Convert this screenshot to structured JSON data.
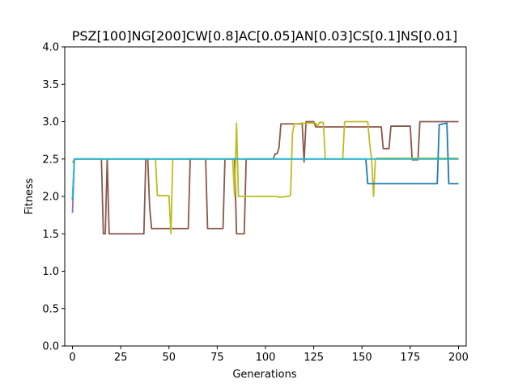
{
  "chart_data": {
    "type": "line",
    "title": "PSZ[100]NG[200]CW[0.8]AC[0.05]AN[0.03]CS[0.1]NS[0.01]",
    "xlabel": "Generations",
    "ylabel": "Fitness",
    "xlim": [
      -4,
      204
    ],
    "ylim": [
      0.0,
      4.0
    ],
    "xticks": [
      0,
      25,
      50,
      75,
      100,
      125,
      150,
      175,
      200
    ],
    "yticks": [
      0.0,
      0.5,
      1.0,
      1.5,
      2.0,
      2.5,
      3.0,
      3.5,
      4.0
    ],
    "ytick_labels": [
      "0.0",
      "0.5",
      "1.0",
      "1.5",
      "2.0",
      "2.5",
      "3.0",
      "3.5",
      "4.0"
    ],
    "grid": false,
    "legend": "none",
    "series": [
      {
        "color": "#8c564b",
        "points": [
          [
            0,
            2.45
          ],
          [
            1,
            2.5
          ],
          [
            15,
            2.5
          ],
          [
            16,
            1.5
          ],
          [
            17,
            1.5
          ],
          [
            18,
            2.5
          ],
          [
            19,
            1.5
          ],
          [
            37,
            1.5
          ],
          [
            38,
            2.5
          ],
          [
            39,
            2.5
          ],
          [
            40,
            1.85
          ],
          [
            41,
            1.57
          ],
          [
            60,
            1.57
          ],
          [
            61,
            2.5
          ],
          [
            69,
            2.5
          ],
          [
            70,
            1.57
          ],
          [
            78,
            1.57
          ],
          [
            79,
            2.5
          ],
          [
            84,
            2.5
          ],
          [
            85,
            1.5
          ],
          [
            89,
            1.5
          ],
          [
            90,
            2.5
          ],
          [
            104,
            2.5
          ],
          [
            105,
            2.57
          ],
          [
            106,
            2.57
          ],
          [
            107,
            2.65
          ],
          [
            108,
            2.97
          ],
          [
            118,
            2.97
          ],
          [
            119,
            2.98
          ],
          [
            120,
            2.46
          ],
          [
            121,
            3.0
          ],
          [
            125,
            3.0
          ],
          [
            126,
            2.93
          ],
          [
            160,
            2.93
          ],
          [
            161,
            2.64
          ],
          [
            164,
            2.64
          ],
          [
            165,
            2.94
          ],
          [
            175,
            2.94
          ],
          [
            176,
            2.49
          ],
          [
            179,
            2.49
          ],
          [
            180,
            3.0
          ],
          [
            200,
            3.0
          ]
        ]
      },
      {
        "color": "#bcbd22",
        "points": [
          [
            0,
            2.45
          ],
          [
            1,
            2.5
          ],
          [
            43,
            2.5
          ],
          [
            44,
            2.01
          ],
          [
            50,
            2.01
          ],
          [
            51,
            1.5
          ],
          [
            52,
            2.5
          ],
          [
            83,
            2.5
          ],
          [
            84,
            2.0
          ],
          [
            85,
            2.98
          ],
          [
            86,
            2.0
          ],
          [
            106,
            2.0
          ],
          [
            107,
            1.99
          ],
          [
            112,
            2.0
          ],
          [
            113,
            2.02
          ],
          [
            114,
            2.85
          ],
          [
            115,
            2.97
          ],
          [
            120,
            2.98
          ],
          [
            126,
            2.98
          ],
          [
            127,
            2.94
          ],
          [
            128,
            2.99
          ],
          [
            130,
            2.99
          ],
          [
            131,
            2.5
          ],
          [
            140,
            2.5
          ],
          [
            141,
            3.0
          ],
          [
            153,
            3.0
          ],
          [
            154,
            2.7
          ],
          [
            155,
            2.5
          ],
          [
            156,
            2.0
          ],
          [
            157,
            2.5
          ],
          [
            158,
            2.51
          ],
          [
            200,
            2.51
          ]
        ]
      },
      {
        "color": "#1f77b4",
        "points": [
          [
            0,
            1.95
          ],
          [
            1,
            2.5
          ],
          [
            152,
            2.5
          ],
          [
            153,
            2.17
          ],
          [
            189,
            2.17
          ],
          [
            190,
            2.96
          ],
          [
            194,
            2.98
          ],
          [
            195,
            2.17
          ],
          [
            200,
            2.17
          ]
        ]
      },
      {
        "color": "#9467bd",
        "points": [
          [
            0,
            1.78
          ],
          [
            1,
            2.5
          ],
          [
            200,
            2.5
          ]
        ]
      },
      {
        "color": "#17becf",
        "points": [
          [
            0,
            1.97
          ],
          [
            1,
            2.5
          ],
          [
            200,
            2.5
          ]
        ]
      }
    ]
  }
}
